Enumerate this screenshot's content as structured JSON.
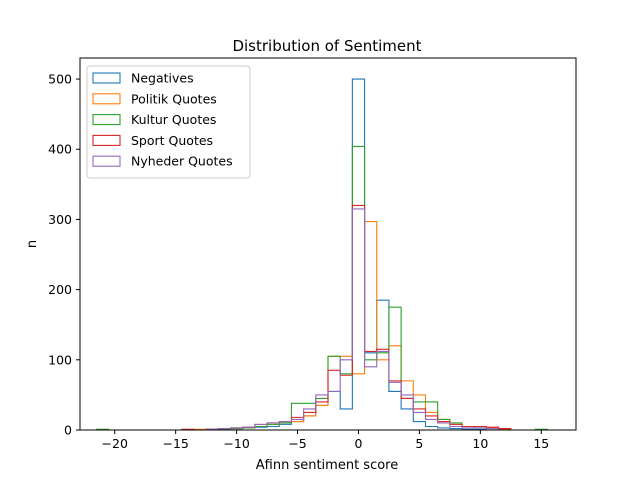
{
  "chart_data": {
    "type": "histogram",
    "title": "Distribution of Sentiment",
    "xlabel": "Afinn sentiment score",
    "ylabel": "n",
    "xlim": [
      -22.85,
      17.85
    ],
    "ylim": [
      0,
      530
    ],
    "xticks": [
      -20,
      -15,
      -10,
      -5,
      0,
      5,
      10,
      15
    ],
    "yticks": [
      0,
      100,
      200,
      300,
      400,
      500
    ],
    "grid": false,
    "legend_position": "top-left",
    "bin_width": 1,
    "series": [
      {
        "name": "Negatives",
        "color": "#1f77b4",
        "x": [
          -12,
          -11,
          -10,
          -9,
          -8,
          -7,
          -6,
          -5,
          -4,
          -3,
          -2,
          -1,
          0,
          1,
          2,
          3,
          4,
          5,
          6,
          7,
          8,
          9,
          10,
          11,
          12
        ],
        "values": [
          1,
          1,
          2,
          3,
          4,
          5,
          8,
          12,
          20,
          35,
          55,
          30,
          500,
          110,
          185,
          55,
          30,
          12,
          5,
          3,
          2,
          1,
          1,
          0,
          0
        ]
      },
      {
        "name": "Politik Quotes",
        "color": "#ff7f0e",
        "x": [
          -13,
          -12,
          -11,
          -10,
          -9,
          -8,
          -7,
          -6,
          -5,
          -4,
          -3,
          -2,
          -1,
          0,
          1,
          2,
          3,
          4,
          5,
          6,
          7,
          8,
          9,
          10,
          11,
          12
        ],
        "values": [
          1,
          1,
          2,
          2,
          3,
          5,
          8,
          10,
          12,
          20,
          35,
          105,
          105,
          80,
          297,
          100,
          120,
          70,
          50,
          25,
          15,
          8,
          5,
          5,
          3,
          1
        ]
      },
      {
        "name": "Kultur Quotes",
        "color": "#2ca02c",
        "x": [
          -21,
          -12,
          -11,
          -10,
          -9,
          -8,
          -7,
          -6,
          -5,
          -4,
          -3,
          -2,
          -1,
          0,
          1,
          2,
          3,
          4,
          5,
          6,
          7,
          8,
          9,
          10,
          11,
          15
        ],
        "values": [
          1,
          1,
          1,
          2,
          3,
          5,
          8,
          10,
          38,
          38,
          45,
          105,
          80,
          404,
          100,
          110,
          175,
          45,
          40,
          40,
          15,
          10,
          5,
          3,
          2,
          1
        ]
      },
      {
        "name": "Sport Quotes",
        "color": "#d62728",
        "x": [
          -14,
          -12,
          -11,
          -10,
          -9,
          -8,
          -7,
          -6,
          -5,
          -4,
          -3,
          -2,
          -1,
          0,
          1,
          2,
          3,
          4,
          5,
          6,
          7,
          8,
          9,
          10,
          11,
          12
        ],
        "values": [
          1,
          1,
          2,
          3,
          4,
          8,
          10,
          12,
          18,
          25,
          40,
          85,
          78,
          320,
          112,
          115,
          70,
          45,
          30,
          20,
          12,
          8,
          5,
          5,
          4,
          2
        ]
      },
      {
        "name": "Nyheder Quotes",
        "color": "#9467bd",
        "x": [
          -12,
          -11,
          -10,
          -9,
          -8,
          -7,
          -6,
          -5,
          -4,
          -3,
          -2,
          -1,
          0,
          1,
          2,
          3,
          4,
          5,
          6,
          7,
          8,
          9,
          10,
          11
        ],
        "values": [
          1,
          2,
          3,
          4,
          8,
          10,
          12,
          15,
          30,
          50,
          55,
          100,
          315,
          90,
          112,
          68,
          50,
          25,
          15,
          10,
          5,
          3,
          3,
          2
        ]
      }
    ]
  }
}
